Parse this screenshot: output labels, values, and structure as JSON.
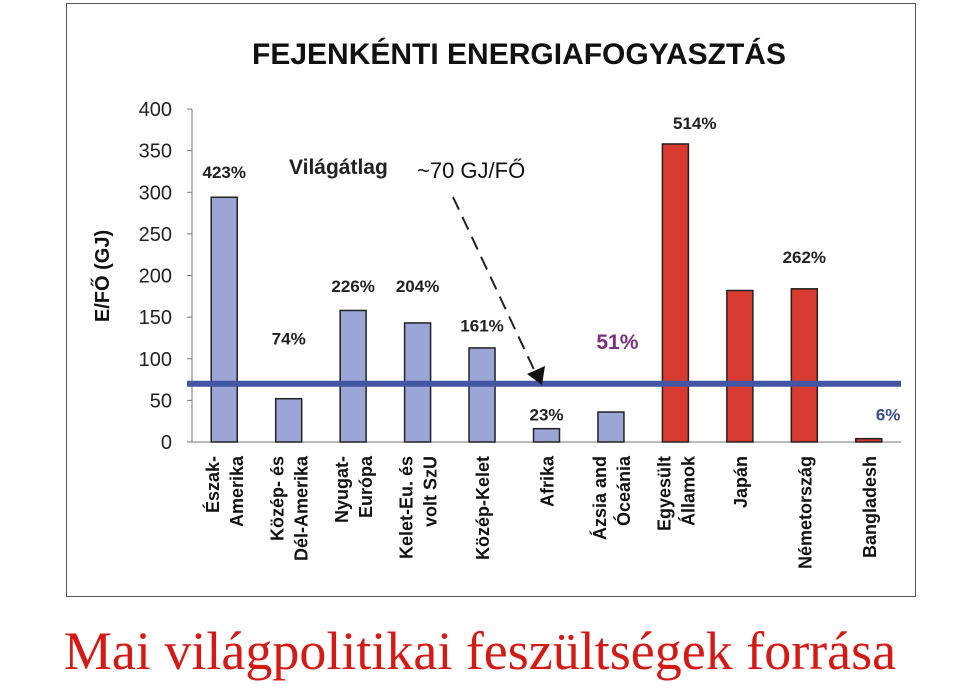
{
  "caption": "Mai világpolitikai feszültségek forrása",
  "chart_data": {
    "type": "bar",
    "title": "FEJENKÉNTI ENERGIAFOGYASZTÁS",
    "ylabel": "E/FŐ (GJ)",
    "ylim": [
      0,
      400
    ],
    "yticks": [
      0,
      50,
      100,
      150,
      200,
      250,
      300,
      350,
      400
    ],
    "grid": false,
    "categories": [
      [
        "Észak-",
        "Amerika"
      ],
      [
        "Közép- és",
        "Dél-Amerika"
      ],
      [
        "Nyugat-",
        "Európa"
      ],
      [
        "Kelet-Eu. és",
        "volt SzU"
      ],
      [
        "Közép-Kelet"
      ],
      [
        "Afrika"
      ],
      [
        "Ázsia and",
        "Óceánia"
      ],
      [
        "Egyesült",
        "Államok"
      ],
      [
        "Japán"
      ],
      [
        "Németország"
      ],
      [
        "Bangladesh"
      ]
    ],
    "values": [
      294,
      52,
      158,
      143,
      113,
      16,
      36,
      358,
      182,
      184,
      4
    ],
    "bar_colors": [
      "#9ba5d6",
      "#9ba5d6",
      "#9ba5d6",
      "#9ba5d6",
      "#9ba5d6",
      "#9ba5d6",
      "#9ba5d6",
      "#d93a30",
      "#d93a30",
      "#d93a30",
      "#d93a30"
    ],
    "percent_labels": [
      {
        "text": "423%",
        "x": 0,
        "y": 317,
        "color": "#222222"
      },
      {
        "text": "74%",
        "x": 1,
        "y": 117,
        "color": "#222222"
      },
      {
        "text": "226%",
        "x": 2,
        "y": 180,
        "color": "#222222"
      },
      {
        "text": "204%",
        "x": 3,
        "y": 180,
        "color": "#222222"
      },
      {
        "text": "161%",
        "x": 4,
        "y": 133,
        "color": "#222222"
      },
      {
        "text": "23%",
        "x": 5,
        "y": 26,
        "color": "#222222"
      },
      {
        "text": "51%",
        "x": 6.1,
        "y": 112,
        "color": "#7a2f7f"
      },
      {
        "text": "514%",
        "x": 7.3,
        "y": 376,
        "color": "#222222"
      },
      {
        "text": "262%",
        "x": 9.0,
        "y": 215,
        "color": "#222222"
      },
      {
        "text": "6%",
        "x": 10.3,
        "y": 26,
        "color": "#3a4f8f"
      }
    ],
    "reference_line": {
      "value": 70,
      "label": "Világátlag",
      "value_label": "~70 GJ/FŐ",
      "color": "#4356a3"
    }
  }
}
